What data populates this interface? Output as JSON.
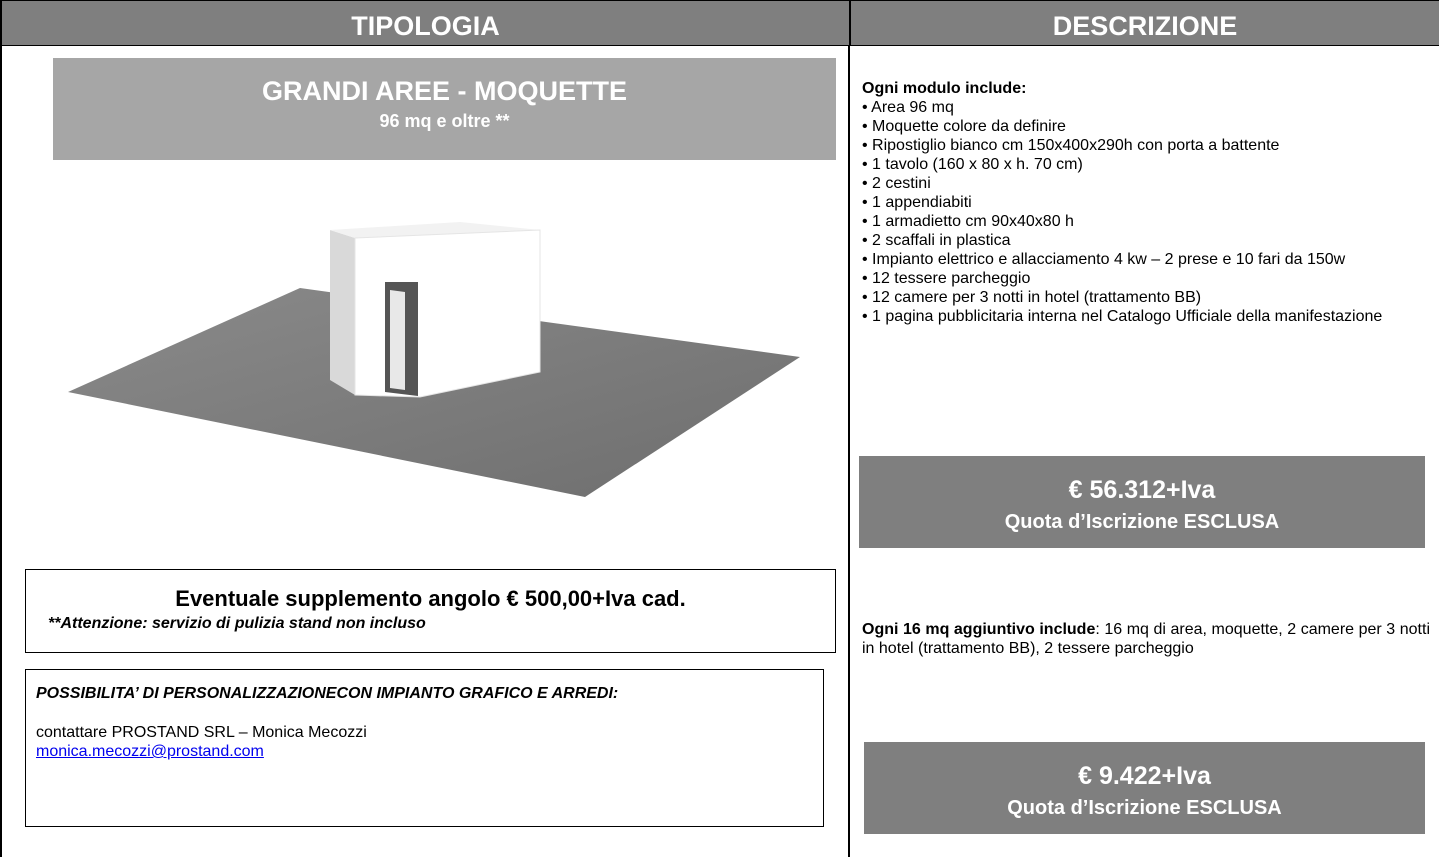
{
  "header": {
    "left": "TIPOLOGIA",
    "right": "DESCRIZIONE"
  },
  "type_box": {
    "title": "GRANDI AREE - MOQUETTE",
    "subtitle": "96 mq e oltre **"
  },
  "supplement": {
    "text": "Eventuale supplemento angolo € 500,00+Iva cad.",
    "note": "**Attenzione: servizio di pulizia stand non incluso"
  },
  "custom": {
    "heading": "POSSIBILITA’ DI PERSONALIZZAZIONECON IMPIANTO GRAFICO E ARREDI:",
    "contact": "contattare PROSTAND SRL – Monica Mecozzi",
    "email": "monica.mecozzi@prostand.com"
  },
  "description": {
    "heading": "Ogni modulo include:",
    "items": [
      "• Area 96 mq",
      "• Moquette colore da definire",
      "• Ripostiglio bianco cm 150x400x290h con porta a battente",
      "• 1 tavolo (160 x 80 x h. 70 cm)",
      "• 2 cestini",
      "• 1 appendiabiti",
      "• 1 armadietto cm 90x40x80 h",
      "• 2 scaffali in plastica",
      "• Impianto elettrico e allacciamento 4 kw – 2 prese e 10 fari da 150w",
      "• 12 tessere parcheggio",
      "• 12 camere per 3 notti in hotel (trattamento BB)",
      "• 1 pagina pubblicitaria interna nel Catalogo Ufficiale della manifestazione"
    ]
  },
  "price1": {
    "amount": "€ 56.312+Iva",
    "note": "Quota d’Iscrizione ESCLUSA"
  },
  "additional": {
    "label": "Ogni 16 mq aggiuntivo include",
    "text": ": 16 mq di area, moquette, 2 camere per 3 notti in hotel (trattamento BB), 2 tessere parcheggio"
  },
  "price2": {
    "amount": "€ 9.422+Iva",
    "note": "Quota d’Iscrizione ESCLUSA"
  }
}
